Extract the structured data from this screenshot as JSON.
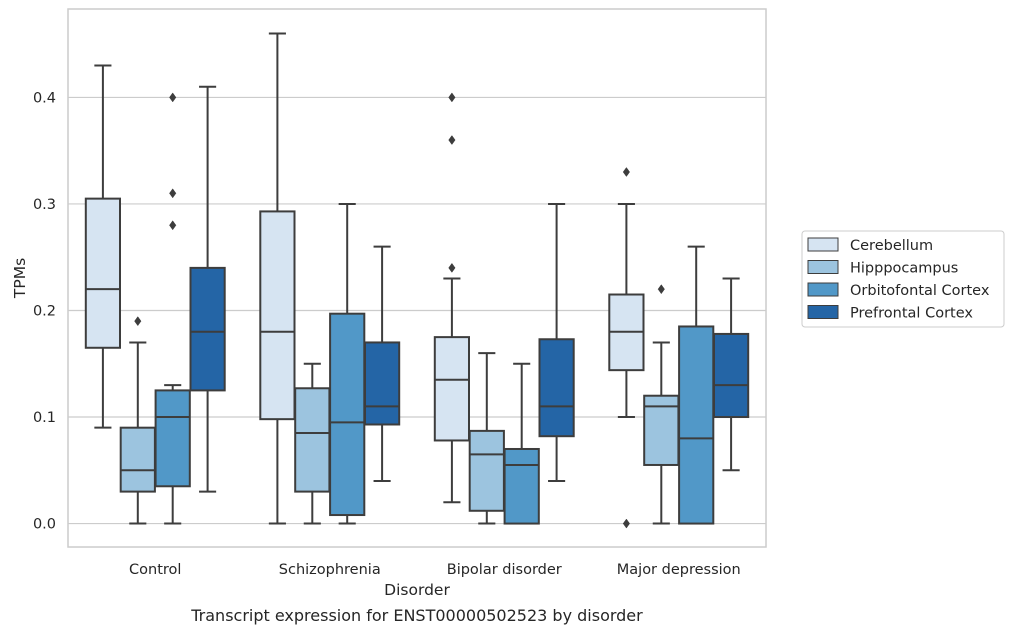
{
  "chart_data": {
    "type": "box",
    "caption": "Transcript expression for ENST00000502523 by disorder",
    "xlabel": "Disorder",
    "ylabel": "TPMs",
    "ylim": [
      -0.022,
      0.483
    ],
    "yticks": [
      0.0,
      0.1,
      0.2,
      0.3,
      0.4
    ],
    "ytick_labels": [
      "0.0",
      "0.1",
      "0.2",
      "0.3",
      "0.4"
    ],
    "grid": true,
    "legend_position": "right",
    "categories": [
      "Control",
      "Schizophrenia",
      "Bipolar disorder",
      "Major depression"
    ],
    "series": [
      {
        "name": "Cerebellum",
        "color": "#d6e4f2",
        "boxes": [
          {
            "whislo": 0.09,
            "q1": 0.165,
            "med": 0.22,
            "q3": 0.305,
            "whishi": 0.43,
            "fliers": []
          },
          {
            "whislo": 0.0,
            "q1": 0.098,
            "med": 0.18,
            "q3": 0.293,
            "whishi": 0.46,
            "fliers": []
          },
          {
            "whislo": 0.02,
            "q1": 0.078,
            "med": 0.135,
            "q3": 0.175,
            "whishi": 0.23,
            "fliers": [
              0.24,
              0.36,
              0.4
            ]
          },
          {
            "whislo": 0.1,
            "q1": 0.144,
            "med": 0.18,
            "q3": 0.215,
            "whishi": 0.3,
            "fliers": [
              0.0,
              0.33
            ]
          }
        ]
      },
      {
        "name": "Hipppocampus",
        "color": "#9cc4df",
        "boxes": [
          {
            "whislo": 0.0,
            "q1": 0.03,
            "med": 0.05,
            "q3": 0.09,
            "whishi": 0.17,
            "fliers": [
              0.19
            ]
          },
          {
            "whislo": 0.0,
            "q1": 0.03,
            "med": 0.085,
            "q3": 0.127,
            "whishi": 0.15,
            "fliers": []
          },
          {
            "whislo": 0.0,
            "q1": 0.012,
            "med": 0.065,
            "q3": 0.087,
            "whishi": 0.16,
            "fliers": []
          },
          {
            "whislo": 0.0,
            "q1": 0.055,
            "med": 0.11,
            "q3": 0.12,
            "whishi": 0.17,
            "fliers": [
              0.22
            ]
          }
        ]
      },
      {
        "name": "Orbitofontal Cortex",
        "color": "#5198c8",
        "boxes": [
          {
            "whislo": 0.0,
            "q1": 0.035,
            "med": 0.1,
            "q3": 0.125,
            "whishi": 0.13,
            "fliers": [
              0.28,
              0.31,
              0.4
            ]
          },
          {
            "whislo": 0.0,
            "q1": 0.008,
            "med": 0.095,
            "q3": 0.197,
            "whishi": 0.3,
            "fliers": []
          },
          {
            "whislo": 0.0,
            "q1": 0.0,
            "med": 0.055,
            "q3": 0.07,
            "whishi": 0.15,
            "fliers": []
          },
          {
            "whislo": 0.0,
            "q1": 0.0,
            "med": 0.08,
            "q3": 0.185,
            "whishi": 0.26,
            "fliers": []
          }
        ]
      },
      {
        "name": "Prefrontal Cortex",
        "color": "#2465a6",
        "boxes": [
          {
            "whislo": 0.03,
            "q1": 0.125,
            "med": 0.18,
            "q3": 0.24,
            "whishi": 0.41,
            "fliers": []
          },
          {
            "whislo": 0.04,
            "q1": 0.093,
            "med": 0.11,
            "q3": 0.17,
            "whishi": 0.26,
            "fliers": []
          },
          {
            "whislo": 0.04,
            "q1": 0.082,
            "med": 0.11,
            "q3": 0.173,
            "whishi": 0.3,
            "fliers": []
          },
          {
            "whislo": 0.05,
            "q1": 0.1,
            "med": 0.13,
            "q3": 0.178,
            "whishi": 0.23,
            "fliers": []
          }
        ]
      }
    ]
  }
}
